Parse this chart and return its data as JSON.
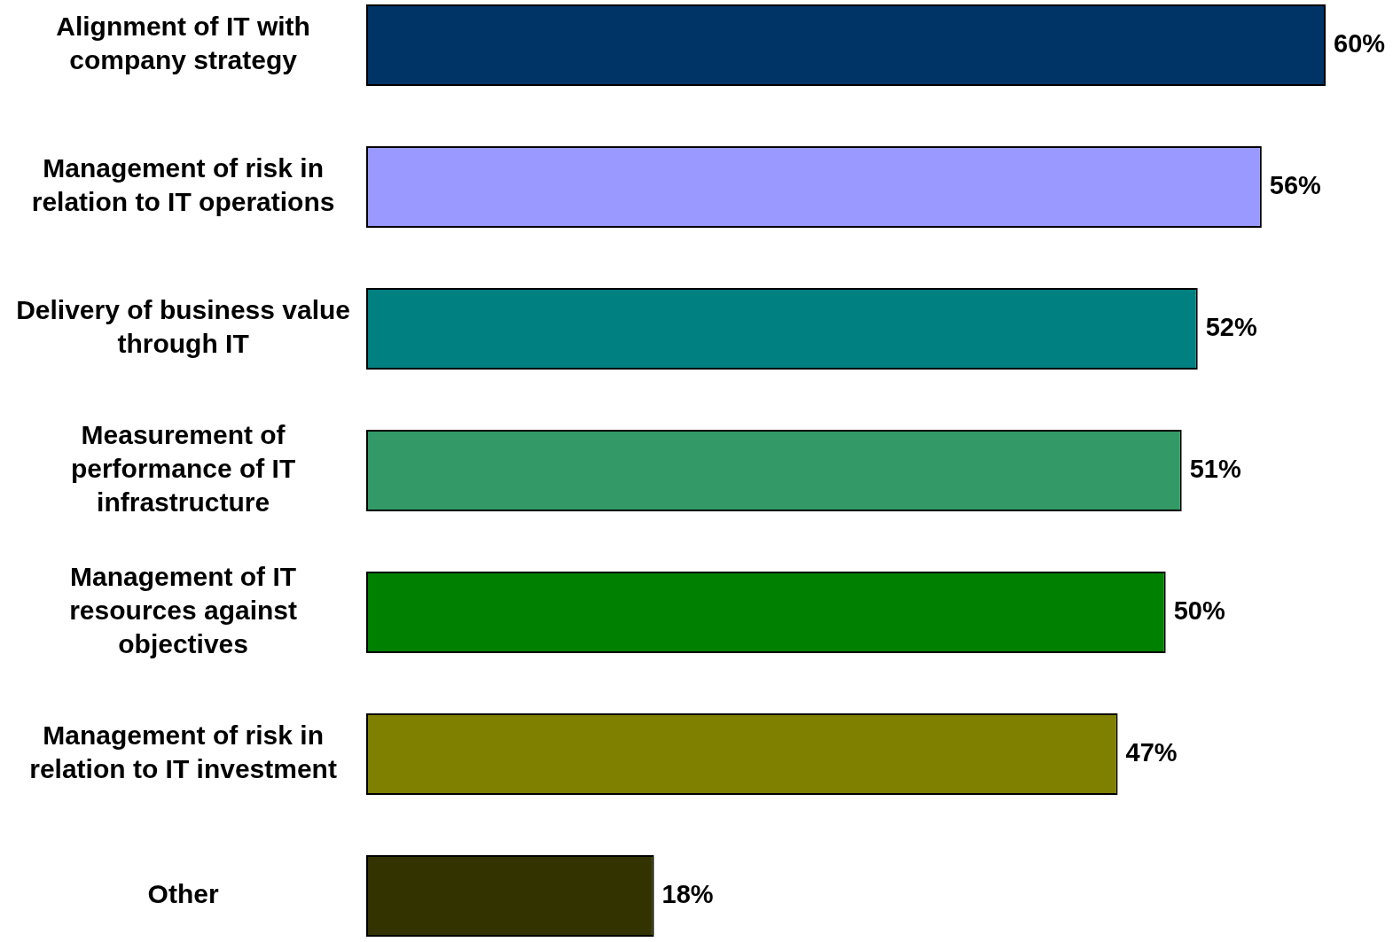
{
  "chart_data": {
    "type": "bar",
    "orientation": "horizontal",
    "categories": [
      "Alignment of IT with company strategy",
      "Management of risk in relation to IT operations",
      "Delivery of business value through IT",
      "Measurement of performance of IT infrastructure",
      "Management of IT resources against objectives",
      "Management of risk in relation to IT investment",
      "Other"
    ],
    "values": [
      60,
      56,
      52,
      51,
      50,
      47,
      18
    ],
    "colors": [
      "#003366",
      "#9999ff",
      "#008080",
      "#339966",
      "#008000",
      "#808000",
      "#333300"
    ],
    "value_labels": [
      "60%",
      "56%",
      "52%",
      "51%",
      "50%",
      "47%",
      "18%"
    ],
    "legend": false
  }
}
